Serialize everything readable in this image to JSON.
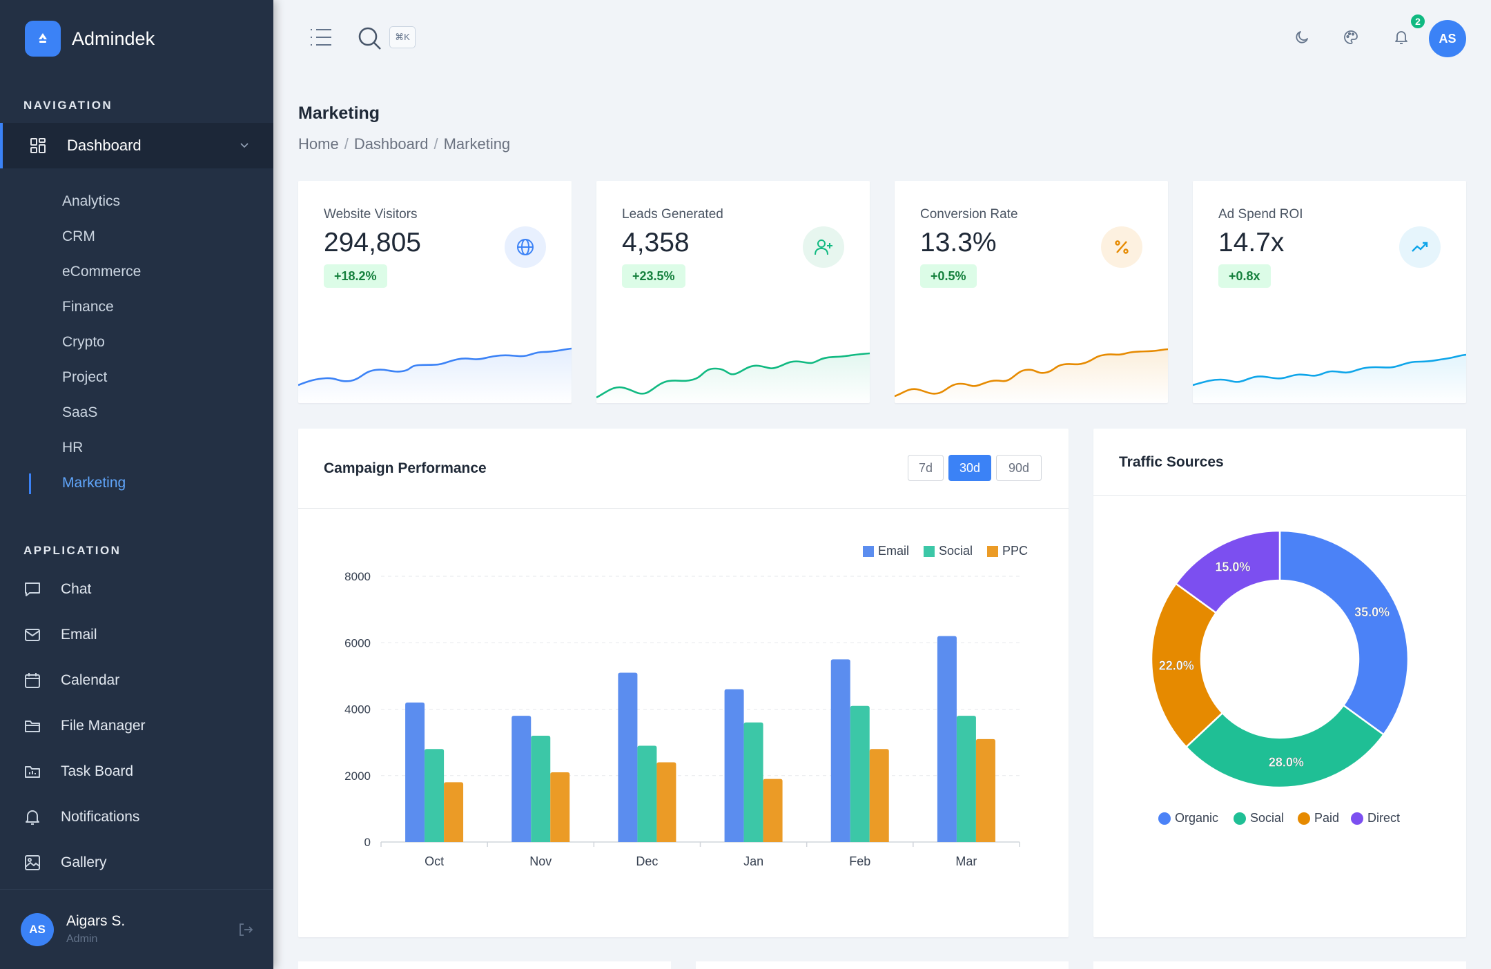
{
  "brand": {
    "name": "Admindek"
  },
  "sidebar": {
    "navigation_title": "NAVIGATION",
    "dashboard": {
      "label": "Dashboard"
    },
    "sub_items": [
      {
        "label": "Analytics"
      },
      {
        "label": "CRM"
      },
      {
        "label": "eCommerce"
      },
      {
        "label": "Finance"
      },
      {
        "label": "Crypto"
      },
      {
        "label": "Project"
      },
      {
        "label": "SaaS"
      },
      {
        "label": "HR"
      },
      {
        "label": "Marketing",
        "active": true
      }
    ],
    "application_title": "APPLICATION",
    "app_items": [
      {
        "label": "Chat",
        "icon": "chat-icon"
      },
      {
        "label": "Email",
        "icon": "mail-icon"
      },
      {
        "label": "Calendar",
        "icon": "calendar-icon"
      },
      {
        "label": "File Manager",
        "icon": "folder-icon"
      },
      {
        "label": "Task Board",
        "icon": "task-board-icon"
      },
      {
        "label": "Notifications",
        "icon": "bell-icon"
      },
      {
        "label": "Gallery",
        "icon": "image-icon"
      }
    ],
    "user": {
      "initials": "AS",
      "name": "Aigars S.",
      "role": "Admin"
    }
  },
  "topbar": {
    "shortcut": "⌘K",
    "notification_count": "2",
    "avatar_initials": "AS"
  },
  "page": {
    "title": "Marketing",
    "breadcrumb": [
      "Home",
      "Dashboard",
      "Marketing"
    ]
  },
  "stats": [
    {
      "label": "Website Visitors",
      "value": "294,805",
      "delta": "+18.2%",
      "icon": "globe-icon",
      "color": "#3b82f6",
      "icon_bg": "#e8f0fe"
    },
    {
      "label": "Leads Generated",
      "value": "4,358",
      "delta": "+23.5%",
      "icon": "user-plus-icon",
      "color": "#10b981",
      "icon_bg": "#e7f6ef"
    },
    {
      "label": "Conversion Rate",
      "value": "13.3%",
      "delta": "+0.5%",
      "icon": "percent-icon",
      "color": "#e68a00",
      "icon_bg": "#fdf1e0"
    },
    {
      "label": "Ad Spend ROI",
      "value": "14.7x",
      "delta": "+0.8x",
      "icon": "trending-up-icon",
      "color": "#0ea5e9",
      "icon_bg": "#e6f5fc"
    }
  ],
  "campaign": {
    "title": "Campaign Performance",
    "ranges": [
      "7d",
      "30d",
      "90d"
    ],
    "active_range": "30d"
  },
  "traffic": {
    "title": "Traffic Sources"
  },
  "chart_data": [
    {
      "type": "bar",
      "title": "Campaign Performance",
      "categories": [
        "Oct",
        "Nov",
        "Dec",
        "Jan",
        "Feb",
        "Mar"
      ],
      "series": [
        {
          "name": "Email",
          "color": "#5b8def",
          "values": [
            4200,
            3800,
            5100,
            4600,
            5500,
            6200
          ]
        },
        {
          "name": "Social",
          "color": "#3cc7a7",
          "values": [
            2800,
            3200,
            2900,
            3600,
            4100,
            3800
          ]
        },
        {
          "name": "PPC",
          "color": "#eb9b26",
          "values": [
            1800,
            2100,
            2400,
            1900,
            2800,
            3100
          ]
        }
      ],
      "ylim": [
        0,
        8000
      ],
      "yticks": [
        0,
        2000,
        4000,
        6000,
        8000
      ],
      "grid": true,
      "legend": "top-right"
    },
    {
      "type": "pie",
      "title": "Traffic Sources",
      "donut": true,
      "slices": [
        {
          "label": "Organic",
          "value": 35.0,
          "display": "35.0%",
          "color": "#4b82f7"
        },
        {
          "label": "Social",
          "value": 28.0,
          "display": "28.0%",
          "color": "#1fbf95"
        },
        {
          "label": "Paid",
          "value": 22.0,
          "display": "22.0%",
          "color": "#e68a00"
        },
        {
          "label": "Direct",
          "value": 15.0,
          "display": "15.0%",
          "color": "#7c4ff0"
        }
      ],
      "legend": "bottom"
    }
  ]
}
